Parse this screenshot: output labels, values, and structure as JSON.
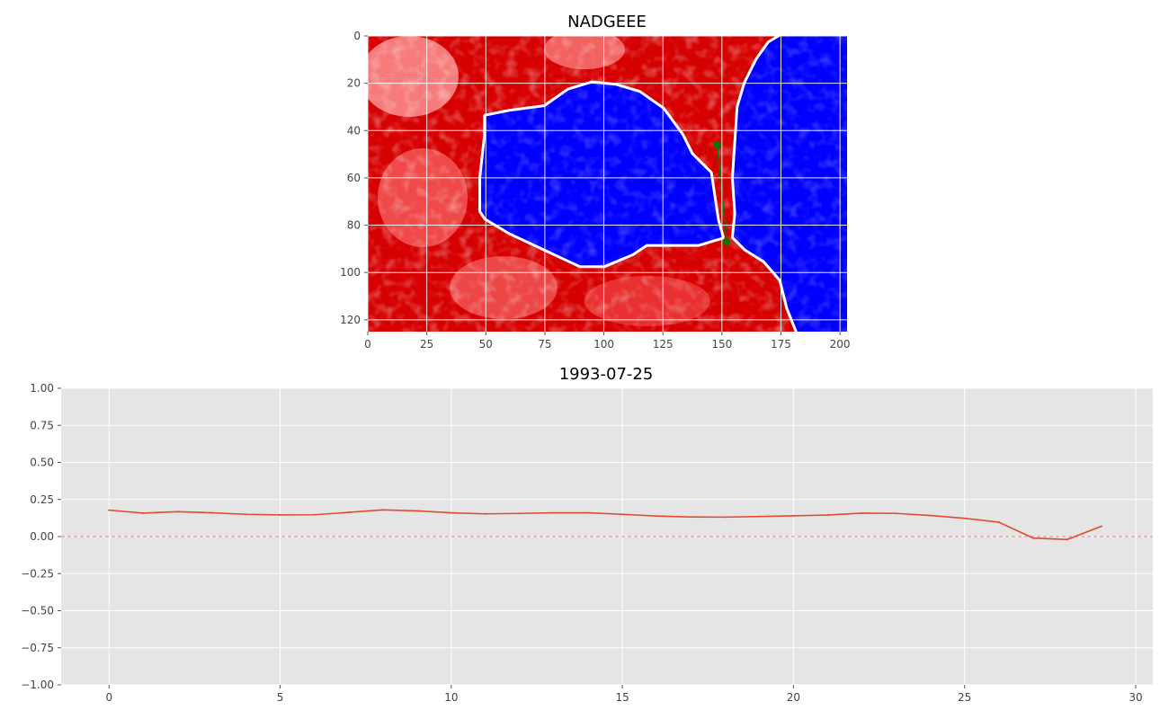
{
  "chart_data": [
    {
      "type": "heatmap",
      "title": "NADGEEE",
      "xlim": [
        0,
        203
      ],
      "ylim": [
        125,
        0
      ],
      "xticks": [
        0,
        25,
        50,
        75,
        100,
        125,
        150,
        175,
        200
      ],
      "yticks": [
        0,
        20,
        40,
        60,
        80,
        100,
        120
      ],
      "grid": true,
      "colors": {
        "low": "#0000ff",
        "mid": "#ffffff",
        "high": "#ff0000"
      },
      "regions": [
        {
          "name": "water-left",
          "color": "#0000ff",
          "polygon": [
            [
              50,
              34
            ],
            [
              60,
              32
            ],
            [
              75,
              30
            ],
            [
              85,
              23
            ],
            [
              95,
              20
            ],
            [
              105,
              21
            ],
            [
              115,
              24
            ],
            [
              125,
              31
            ],
            [
              133,
              42
            ],
            [
              137,
              50
            ],
            [
              145,
              58
            ],
            [
              148,
              78
            ],
            [
              150,
              85
            ],
            [
              140,
              88
            ],
            [
              133,
              88
            ],
            [
              125,
              88
            ],
            [
              118,
              88
            ],
            [
              112,
              92
            ],
            [
              100,
              97
            ],
            [
              90,
              97
            ],
            [
              75,
              90
            ],
            [
              60,
              83
            ],
            [
              50,
              77
            ],
            [
              48,
              74
            ],
            [
              48,
              60
            ],
            [
              50,
              42
            ]
          ]
        },
        {
          "name": "water-right",
          "color": "#0000ff",
          "polygon": [
            [
              175,
              0
            ],
            [
              203,
              0
            ],
            [
              203,
              125
            ],
            [
              182,
              125
            ],
            [
              178,
              115
            ],
            [
              175,
              103
            ],
            [
              168,
              95
            ],
            [
              160,
              90
            ],
            [
              155,
              85
            ],
            [
              156,
              75
            ],
            [
              155,
              60
            ],
            [
              156,
              45
            ],
            [
              157,
              30
            ],
            [
              160,
              20
            ],
            [
              165,
              10
            ],
            [
              170,
              3
            ]
          ]
        }
      ],
      "transect": {
        "color": "#007a00",
        "points": [
          [
            148,
            46
          ],
          [
            152,
            87
          ]
        ]
      }
    },
    {
      "type": "line",
      "title": "1993-07-25",
      "x": [
        0,
        1,
        2,
        3,
        4,
        5,
        6,
        7,
        8,
        9,
        10,
        11,
        12,
        13,
        14,
        15,
        16,
        17,
        18,
        19,
        20,
        21,
        22,
        23,
        24,
        25,
        26,
        27,
        28,
        29
      ],
      "series": [
        {
          "values": [
            0.178,
            0.158,
            0.168,
            0.16,
            0.15,
            0.146,
            0.147,
            0.163,
            0.18,
            0.173,
            0.16,
            0.153,
            0.156,
            0.16,
            0.16,
            0.15,
            0.138,
            0.132,
            0.131,
            0.135,
            0.14,
            0.145,
            0.158,
            0.156,
            0.142,
            0.123,
            0.097,
            -0.01,
            -0.02,
            0.07
          ],
          "color": "#e24a33"
        }
      ],
      "xlim": [
        -1.4,
        30.5
      ],
      "ylim": [
        -1.0,
        1.0
      ],
      "xticks": [
        0,
        5,
        10,
        15,
        20,
        25,
        30
      ],
      "yticks": [
        -1.0,
        -0.75,
        -0.5,
        -0.25,
        0.0,
        0.25,
        0.5,
        0.75,
        1.0
      ],
      "ytick_labels": [
        "−1.00",
        "−0.75",
        "−0.50",
        "−0.25",
        "0.00",
        "0.25",
        "0.50",
        "0.75",
        "1.00"
      ],
      "reference_line": {
        "y": 0.0,
        "style": "dashed",
        "color": "#f08a80"
      },
      "grid": true,
      "background": "#e5e5e5"
    }
  ]
}
